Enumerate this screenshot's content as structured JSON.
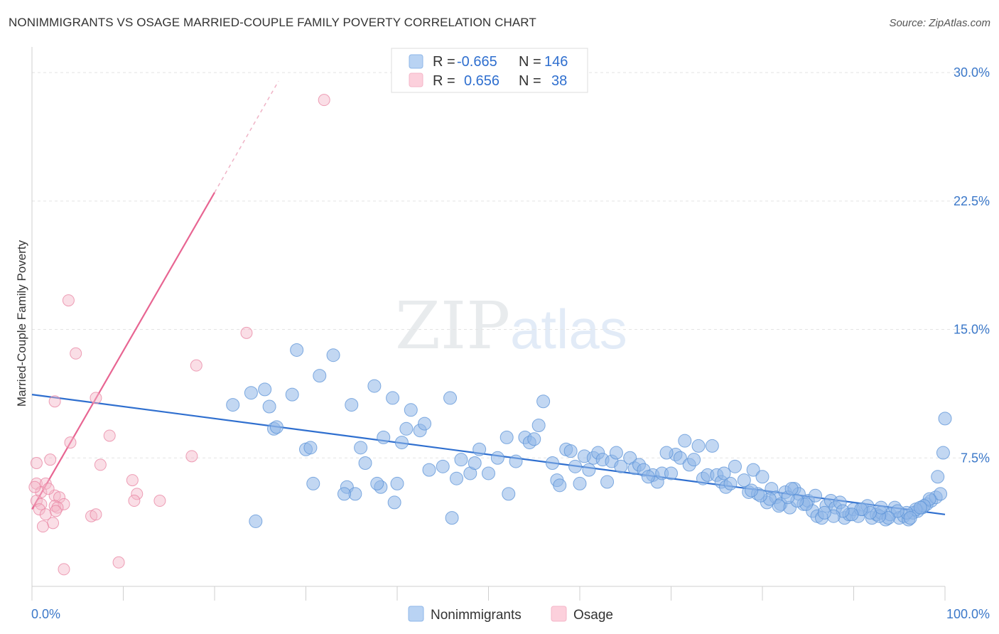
{
  "header": {
    "title": "NONIMMIGRANTS VS OSAGE MARRIED-COUPLE FAMILY POVERTY CORRELATION CHART",
    "source": "Source: ZipAtlas.com"
  },
  "watermark": {
    "zip": "ZIP",
    "atlas": "atlas"
  },
  "colors": {
    "blue": "#8fb7e8",
    "blue_stroke": "#6b9ede",
    "blue_line": "#2f6fcf",
    "pink": "#f5b6c8",
    "pink_stroke": "#ec94ad",
    "pink_line": "#e86592",
    "tick_text": "#3b78c9"
  },
  "legend": {
    "rows": [
      {
        "r_label": "R =",
        "r_value": "-0.665",
        "n_label": "N =",
        "n_value": "146",
        "color": "#8fb7e8"
      },
      {
        "r_label": "R =",
        "r_value": "0.656",
        "n_label": "N =",
        "n_value": "38",
        "color": "#f5b6c8"
      }
    ]
  },
  "bottom_legend": [
    {
      "label": "Nonimmigrants",
      "color": "#8fb7e8"
    },
    {
      "label": "Osage",
      "color": "#f5b6c8"
    }
  ],
  "chart_data": {
    "type": "scatter",
    "title": "NONIMMIGRANTS VS OSAGE MARRIED-COUPLE FAMILY POVERTY CORRELATION CHART",
    "xlabel": "",
    "ylabel": "Married-Couple Family Poverty",
    "xlim": [
      0,
      100
    ],
    "ylim": [
      0,
      31
    ],
    "x_tick_labels": [
      "0.0%",
      "100.0%"
    ],
    "y_ticks": [
      7.5,
      15.0,
      22.5,
      30.0
    ],
    "y_tick_labels": [
      "7.5%",
      "15.0%",
      "22.5%",
      "30.0%"
    ],
    "grid": true,
    "legend_position": "top-center",
    "series": [
      {
        "name": "Nonimmigrants",
        "color": "#8fb7e8",
        "trend": {
          "x": [
            0,
            100
          ],
          "y": [
            11.2,
            4.2
          ]
        },
        "points": [
          [
            22.0,
            10.6
          ],
          [
            24.0,
            11.3
          ],
          [
            25.5,
            11.5
          ],
          [
            26.0,
            10.5
          ],
          [
            26.5,
            9.2
          ],
          [
            26.8,
            9.3
          ],
          [
            28.5,
            11.2
          ],
          [
            29.0,
            13.8
          ],
          [
            30.0,
            8.0
          ],
          [
            30.5,
            8.1
          ],
          [
            31.5,
            12.3
          ],
          [
            33.0,
            13.5
          ],
          [
            35.0,
            10.6
          ],
          [
            36.0,
            8.1
          ],
          [
            36.5,
            7.2
          ],
          [
            37.5,
            11.7
          ],
          [
            38.5,
            8.7
          ],
          [
            39.5,
            11.0
          ],
          [
            40.5,
            8.4
          ],
          [
            41.0,
            9.2
          ],
          [
            41.5,
            10.3
          ],
          [
            42.5,
            9.1
          ],
          [
            43.0,
            9.5
          ],
          [
            43.5,
            6.8
          ],
          [
            45.0,
            7.0
          ],
          [
            45.8,
            11.0
          ],
          [
            46.5,
            6.3
          ],
          [
            47.0,
            7.4
          ],
          [
            48.0,
            6.6
          ],
          [
            48.5,
            7.2
          ],
          [
            49.0,
            8.0
          ],
          [
            50.0,
            6.6
          ],
          [
            51.0,
            7.5
          ],
          [
            52.0,
            8.7
          ],
          [
            53.0,
            7.3
          ],
          [
            54.0,
            8.7
          ],
          [
            54.5,
            8.4
          ],
          [
            55.0,
            8.6
          ],
          [
            55.5,
            9.4
          ],
          [
            56.0,
            10.8
          ],
          [
            57.0,
            7.2
          ],
          [
            57.5,
            6.2
          ],
          [
            58.5,
            8.0
          ],
          [
            59.0,
            7.9
          ],
          [
            59.5,
            7.0
          ],
          [
            60.5,
            7.6
          ],
          [
            61.0,
            6.8
          ],
          [
            61.5,
            7.5
          ],
          [
            62.0,
            7.8
          ],
          [
            62.5,
            7.4
          ],
          [
            63.5,
            7.3
          ],
          [
            64.0,
            7.8
          ],
          [
            64.5,
            7.0
          ],
          [
            65.5,
            7.5
          ],
          [
            66.0,
            6.9
          ],
          [
            66.5,
            7.1
          ],
          [
            67.0,
            6.8
          ],
          [
            68.0,
            6.5
          ],
          [
            68.5,
            6.1
          ],
          [
            69.0,
            6.6
          ],
          [
            70.0,
            6.6
          ],
          [
            70.5,
            7.7
          ],
          [
            71.0,
            7.5
          ],
          [
            71.5,
            8.5
          ],
          [
            72.0,
            7.1
          ],
          [
            73.0,
            8.2
          ],
          [
            73.5,
            6.3
          ],
          [
            74.0,
            6.5
          ],
          [
            74.5,
            8.2
          ],
          [
            75.0,
            6.5
          ],
          [
            75.5,
            6.1
          ],
          [
            76.0,
            5.8
          ],
          [
            76.5,
            6.0
          ],
          [
            77.0,
            7.0
          ],
          [
            78.0,
            6.2
          ],
          [
            78.5,
            5.5
          ],
          [
            79.0,
            6.8
          ],
          [
            79.5,
            5.4
          ],
          [
            80.0,
            6.4
          ],
          [
            80.5,
            4.9
          ],
          [
            81.0,
            5.7
          ],
          [
            81.5,
            5.2
          ],
          [
            82.0,
            4.8
          ],
          [
            82.5,
            5.5
          ],
          [
            83.0,
            4.6
          ],
          [
            83.5,
            5.7
          ],
          [
            84.0,
            5.4
          ],
          [
            84.5,
            4.8
          ],
          [
            85.0,
            5.0
          ],
          [
            85.5,
            4.4
          ],
          [
            86.0,
            4.1
          ],
          [
            86.5,
            4.0
          ],
          [
            87.0,
            4.7
          ],
          [
            87.5,
            5.0
          ],
          [
            88.0,
            4.6
          ],
          [
            88.5,
            4.9
          ],
          [
            89.0,
            4.0
          ],
          [
            89.5,
            4.2
          ],
          [
            90.0,
            4.5
          ],
          [
            90.5,
            4.1
          ],
          [
            91.0,
            4.5
          ],
          [
            91.5,
            4.7
          ],
          [
            92.0,
            4.0
          ],
          [
            92.5,
            4.2
          ],
          [
            93.0,
            4.3
          ],
          [
            93.5,
            3.9
          ],
          [
            94.0,
            4.2
          ],
          [
            94.5,
            4.6
          ],
          [
            95.0,
            4.0
          ],
          [
            95.5,
            4.1
          ],
          [
            96.0,
            3.9
          ],
          [
            96.5,
            4.3
          ],
          [
            97.0,
            4.4
          ],
          [
            97.5,
            4.6
          ],
          [
            98.0,
            4.8
          ],
          [
            98.5,
            5.0
          ],
          [
            99.0,
            5.2
          ],
          [
            99.5,
            5.4
          ],
          [
            100.0,
            9.8
          ],
          [
            99.8,
            7.8
          ],
          [
            99.2,
            6.4
          ],
          [
            98.3,
            5.1
          ],
          [
            97.7,
            4.7
          ],
          [
            96.8,
            4.5
          ],
          [
            95.8,
            4.3
          ],
          [
            94.8,
            4.4
          ],
          [
            93.8,
            4.0
          ],
          [
            92.8,
            4.1
          ],
          [
            91.8,
            4.3
          ],
          [
            90.8,
            4.5
          ],
          [
            89.8,
            4.2
          ],
          [
            88.8,
            4.4
          ],
          [
            87.8,
            4.1
          ],
          [
            86.8,
            4.3
          ],
          [
            85.8,
            5.3
          ],
          [
            84.8,
            4.8
          ],
          [
            83.8,
            5.0
          ],
          [
            82.8,
            5.2
          ],
          [
            81.8,
            4.7
          ],
          [
            80.8,
            5.1
          ],
          [
            79.8,
            5.3
          ],
          [
            78.8,
            5.6
          ],
          [
            40.0,
            6.0
          ],
          [
            46.0,
            4.0
          ],
          [
            34.5,
            5.8
          ],
          [
            30.8,
            6.0
          ],
          [
            24.5,
            3.8
          ],
          [
            38.2,
            5.8
          ],
          [
            37.8,
            6.0
          ],
          [
            39.7,
            4.9
          ],
          [
            35.4,
            5.4
          ],
          [
            34.2,
            5.4
          ],
          [
            52.2,
            5.4
          ],
          [
            57.8,
            5.9
          ],
          [
            60.0,
            6.0
          ],
          [
            63.0,
            6.1
          ],
          [
            67.5,
            6.4
          ],
          [
            69.5,
            7.8
          ],
          [
            72.5,
            7.4
          ],
          [
            75.8,
            6.6
          ],
          [
            83.2,
            5.7
          ],
          [
            96.2,
            4.0
          ],
          [
            97.3,
            4.6
          ],
          [
            93.0,
            4.6
          ]
        ]
      },
      {
        "name": "Osage",
        "color": "#f5b6c8",
        "trend": {
          "x": [
            0,
            20
          ],
          "y": [
            4.5,
            23.0
          ],
          "dashed_extension": {
            "x": [
              20,
              27
            ],
            "y": [
              23.0,
              29.5
            ]
          }
        },
        "points": [
          [
            32.0,
            28.4
          ],
          [
            4.0,
            16.7
          ],
          [
            23.5,
            14.8
          ],
          [
            4.8,
            13.6
          ],
          [
            18.0,
            12.9
          ],
          [
            2.5,
            10.8
          ],
          [
            7.0,
            11.0
          ],
          [
            8.5,
            8.8
          ],
          [
            4.2,
            8.4
          ],
          [
            2.0,
            7.4
          ],
          [
            7.5,
            7.1
          ],
          [
            17.5,
            7.6
          ],
          [
            0.5,
            7.2
          ],
          [
            0.5,
            6.0
          ],
          [
            1.5,
            6.0
          ],
          [
            11.0,
            6.2
          ],
          [
            1.0,
            5.5
          ],
          [
            2.5,
            5.3
          ],
          [
            3.0,
            5.2
          ],
          [
            0.5,
            5.0
          ],
          [
            1.0,
            4.8
          ],
          [
            2.5,
            4.7
          ],
          [
            3.5,
            4.8
          ],
          [
            2.8,
            4.6
          ],
          [
            0.8,
            4.5
          ],
          [
            11.5,
            5.4
          ],
          [
            14.0,
            5.0
          ],
          [
            11.2,
            5.0
          ],
          [
            1.5,
            4.2
          ],
          [
            6.5,
            4.1
          ],
          [
            7.0,
            4.2
          ],
          [
            2.3,
            3.7
          ],
          [
            1.2,
            3.5
          ],
          [
            9.5,
            1.4
          ],
          [
            3.5,
            1.0
          ],
          [
            0.3,
            5.8
          ],
          [
            1.8,
            5.7
          ],
          [
            2.6,
            4.4
          ]
        ]
      }
    ]
  }
}
